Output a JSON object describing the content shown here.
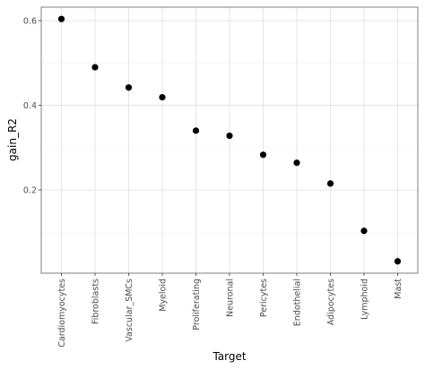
{
  "chart_data": {
    "type": "scatter",
    "x_label": "Target",
    "y_label": "gain_R2",
    "categories": [
      "Cardiomyocytes",
      "Fibroblasts",
      "Vascular_SMCs",
      "Myeloid",
      "Proliferating",
      "Neuronal",
      "Pericytes",
      "Endothelial",
      "Adipocytes",
      "Lymphoid",
      "Mast"
    ],
    "values": [
      0.604,
      0.49,
      0.442,
      0.419,
      0.34,
      0.328,
      0.283,
      0.264,
      0.215,
      0.103,
      0.031
    ],
    "color": "#000000",
    "ylim": [
      0.003,
      0.632
    ],
    "yticks": [
      0.2,
      0.4,
      0.6
    ],
    "minor_yticks": [
      0.1,
      0.3,
      0.5
    ],
    "grid": true
  }
}
